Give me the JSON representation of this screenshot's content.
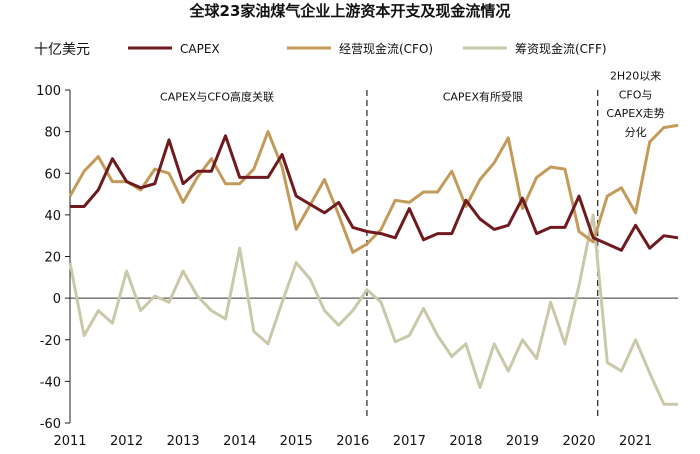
{
  "chart_data": {
    "type": "line",
    "title": "全球23家油煤气企业上游资本开支及现金流情况",
    "ylabel": "十亿美元",
    "ylim": [
      -60,
      100
    ],
    "yticks": [
      100,
      80,
      60,
      40,
      20,
      0,
      -20,
      -40,
      -60
    ],
    "xlim": [
      2011,
      2021.75
    ],
    "xticks": [
      "2011",
      "2012",
      "2013",
      "2014",
      "2015",
      "2016",
      "2017",
      "2018",
      "2019",
      "2020",
      "2021"
    ],
    "legend_position": "top",
    "grid": false,
    "x": [
      2011.0,
      2011.25,
      2011.5,
      2011.75,
      2012.0,
      2012.25,
      2012.5,
      2012.75,
      2013.0,
      2013.25,
      2013.5,
      2013.75,
      2014.0,
      2014.25,
      2014.5,
      2014.75,
      2015.0,
      2015.25,
      2015.5,
      2015.75,
      2016.0,
      2016.25,
      2016.5,
      2016.75,
      2017.0,
      2017.25,
      2017.5,
      2017.75,
      2018.0,
      2018.25,
      2018.5,
      2018.75,
      2019.0,
      2019.25,
      2019.5,
      2019.75,
      2020.0,
      2020.25,
      2020.5,
      2020.75,
      2021.0,
      2021.25,
      2021.5,
      2021.75
    ],
    "series": [
      {
        "name": "CAPEX",
        "color": "#6e1a1e",
        "values": [
          44,
          44,
          52,
          67,
          56,
          53,
          55,
          76,
          55,
          61,
          61,
          78,
          58,
          58,
          58,
          69,
          49,
          45,
          41,
          46,
          34,
          32,
          31,
          29,
          43,
          28,
          31,
          31,
          47,
          38,
          33,
          35,
          48,
          31,
          34,
          34,
          49,
          29,
          26,
          23,
          35,
          24,
          30,
          29
        ]
      },
      {
        "name": "经营现金流(CFO)",
        "color": "#c49a5a",
        "values": [
          49,
          61,
          68,
          56,
          56,
          52,
          62,
          60,
          46,
          58,
          67,
          55,
          55,
          62,
          80,
          63,
          33,
          45,
          57,
          40,
          22,
          26,
          33,
          47,
          46,
          51,
          51,
          61,
          44,
          57,
          65,
          77,
          43,
          58,
          63,
          62,
          32,
          27,
          49,
          53,
          41,
          75,
          82,
          83
        ]
      },
      {
        "name": "筹资现金流(CFF)",
        "color": "#c9c9aa",
        "values": [
          17,
          -18,
          -6,
          -12,
          13,
          -6,
          1,
          -2,
          13,
          1,
          -6,
          -10,
          24,
          -16,
          -22,
          -2,
          17,
          9,
          -6,
          -13,
          -6,
          4,
          -2,
          -21,
          -18,
          -5,
          -18,
          -28,
          -22,
          -43,
          -22,
          -35,
          -20,
          -29,
          -2,
          -22,
          6,
          40,
          -31,
          -35,
          -20,
          -36,
          -51,
          -51
        ]
      }
    ],
    "vlines": [
      2016.25,
      2020.33
    ],
    "annotations": [
      {
        "text": "CAPEX与CFO高度关联",
        "x": 2013.6,
        "y": 95
      },
      {
        "text": "CAPEX有所受限",
        "x": 2018.3,
        "y": 95
      },
      {
        "lines": [
          "2H20以来",
          "CFO与",
          "CAPEX走势",
          "分化"
        ],
        "x": 2021.0,
        "y": [
          105,
          96,
          87,
          78
        ]
      }
    ],
    "zero_line": true
  }
}
